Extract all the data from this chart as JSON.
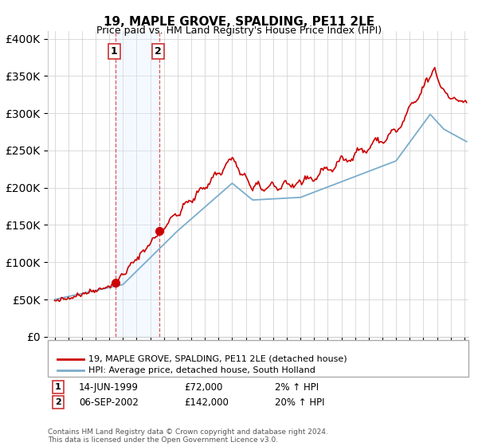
{
  "title": "19, MAPLE GROVE, SPALDING, PE11 2LE",
  "subtitle": "Price paid vs. HM Land Registry's House Price Index (HPI)",
  "legend_line1": "19, MAPLE GROVE, SPALDING, PE11 2LE (detached house)",
  "legend_line2": "HPI: Average price, detached house, South Holland",
  "annotation1_label": "1",
  "annotation1_date": "14-JUN-1999",
  "annotation1_price": "£72,000",
  "annotation1_hpi": "2% ↑ HPI",
  "annotation1_year": 1999.45,
  "annotation1_value": 72000,
  "annotation2_label": "2",
  "annotation2_date": "06-SEP-2002",
  "annotation2_price": "£142,000",
  "annotation2_hpi": "20% ↑ HPI",
  "annotation2_year": 2002.68,
  "annotation2_value": 142000,
  "footer1": "Contains HM Land Registry data © Crown copyright and database right 2024.",
  "footer2": "This data is licensed under the Open Government Licence v3.0.",
  "red_color": "#cc0000",
  "blue_color": "#7aadcc",
  "shade_color": "#ddeeff",
  "ylim": [
    0,
    410000
  ],
  "yticks": [
    0,
    50000,
    100000,
    150000,
    200000,
    250000,
    300000,
    350000,
    400000
  ]
}
